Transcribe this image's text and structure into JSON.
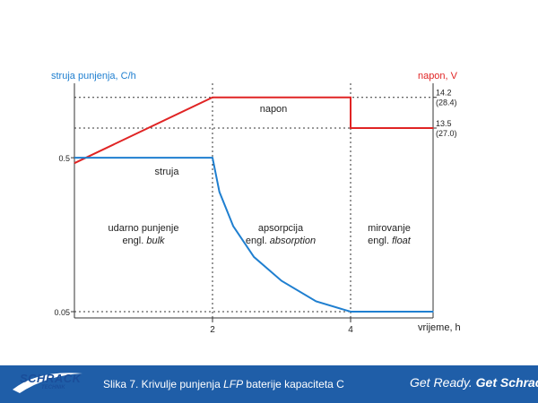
{
  "chart_data": {
    "type": "line",
    "left_axis_label": "struja punjenja, C/h",
    "right_axis_label": "napon, V",
    "xlabel": "vrijeme, h",
    "x_ticks": [
      "2",
      "4"
    ],
    "left_y_ticks": [
      "0.5",
      "0.05"
    ],
    "right_y_ticks": [
      {
        "v": "14.2",
        "sub": "(28.4)"
      },
      {
        "v": "13.5",
        "sub": "(27.0)"
      }
    ],
    "series": [
      {
        "name": "napon",
        "color": "#e02424",
        "points": [
          [
            0,
            12.7
          ],
          [
            2,
            14.2
          ],
          [
            4,
            14.2
          ],
          [
            4,
            13.5
          ],
          [
            5.2,
            13.5
          ]
        ]
      },
      {
        "name": "struja",
        "color": "#1f7fd0",
        "points": [
          [
            0,
            0.5
          ],
          [
            2,
            0.5
          ],
          [
            2.1,
            0.4
          ],
          [
            2.3,
            0.3
          ],
          [
            2.6,
            0.21
          ],
          [
            3,
            0.14
          ],
          [
            3.5,
            0.08
          ],
          [
            4,
            0.05
          ],
          [
            5.2,
            0.05
          ]
        ]
      }
    ],
    "phases": [
      {
        "line1": "udarno punjenje",
        "line2_prefix": "engl. ",
        "line2_em": "bulk"
      },
      {
        "line1": "apsorpcija",
        "line2_prefix": "engl. ",
        "line2_em": "absorption"
      },
      {
        "line1": "mirovanje",
        "line2_prefix": "engl. ",
        "line2_em": "float"
      }
    ],
    "colors": {
      "current": "#1f7fd0",
      "voltage": "#e02424",
      "axis": "#333333"
    }
  },
  "footer": {
    "logo": {
      "word": "SCHRACK",
      "sub": "TECHNIK"
    },
    "caption_prefix": "Slika 7.  Krivulje punjenja ",
    "caption_em": "LFP",
    "caption_suffix": " baterije kapaciteta C",
    "slogan_a": "Get Ready.",
    "slogan_b": "Get Schrack."
  }
}
